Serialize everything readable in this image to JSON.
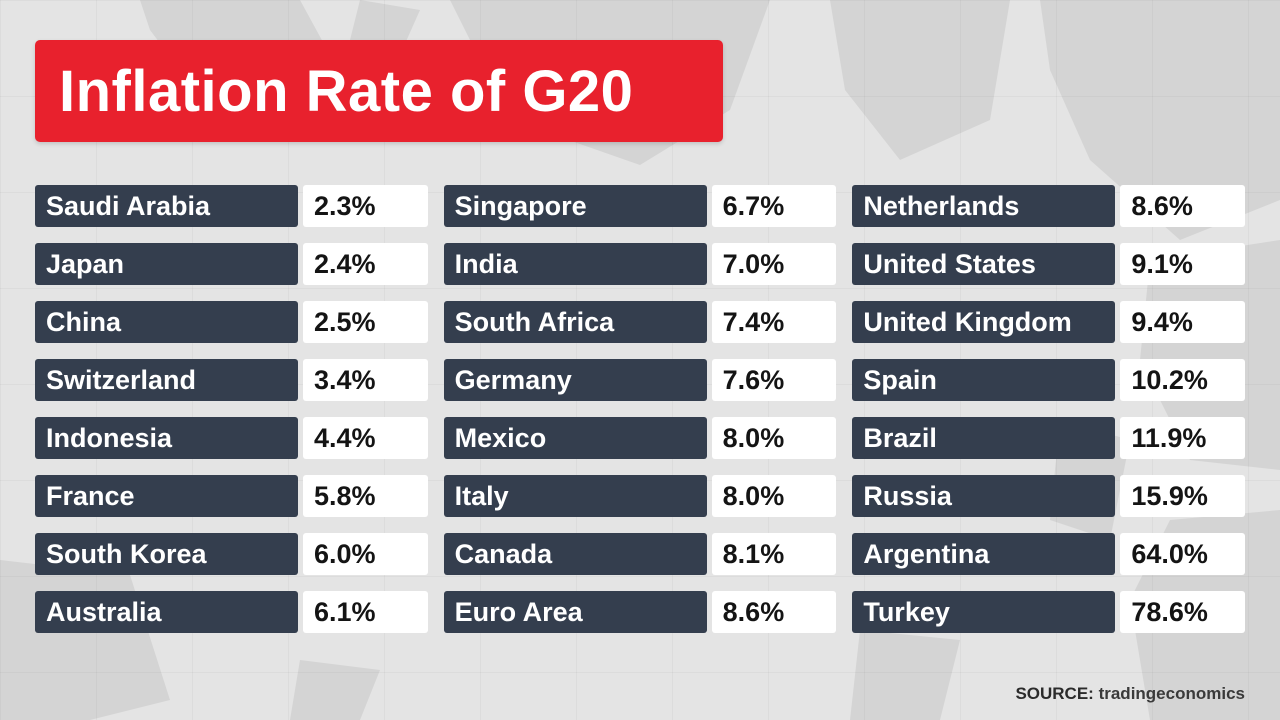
{
  "title": "Inflation Rate of G20",
  "source": {
    "label": "SOURCE:",
    "value": "tradingeconomics"
  },
  "colors": {
    "accent_red": "#e8212d",
    "navy_box": "#343e4e",
    "background": "#e4e4e4",
    "map_shape": "#d4d4d4",
    "value_text": "#141414"
  },
  "chart_data": {
    "type": "table",
    "title": "Inflation Rate of G20",
    "columns": [
      "Country",
      "Inflation Rate"
    ],
    "unit": "%",
    "groups": [
      {
        "items": [
          {
            "country": "Saudi Arabia",
            "rate": "2.3%"
          },
          {
            "country": "Japan",
            "rate": "2.4%"
          },
          {
            "country": "China",
            "rate": "2.5%"
          },
          {
            "country": "Switzerland",
            "rate": "3.4%"
          },
          {
            "country": "Indonesia",
            "rate": "4.4%"
          },
          {
            "country": "France",
            "rate": "5.8%"
          },
          {
            "country": "South Korea",
            "rate": "6.0%"
          },
          {
            "country": "Australia",
            "rate": "6.1%"
          }
        ]
      },
      {
        "items": [
          {
            "country": "Singapore",
            "rate": "6.7%"
          },
          {
            "country": "India",
            "rate": "7.0%"
          },
          {
            "country": "South Africa",
            "rate": "7.4%"
          },
          {
            "country": "Germany",
            "rate": "7.6%"
          },
          {
            "country": "Mexico",
            "rate": "8.0%"
          },
          {
            "country": "Italy",
            "rate": "8.0%"
          },
          {
            "country": "Canada",
            "rate": "8.1%"
          },
          {
            "country": "Euro Area",
            "rate": "8.6%"
          }
        ]
      },
      {
        "items": [
          {
            "country": "Netherlands",
            "rate": "8.6%"
          },
          {
            "country": "United States",
            "rate": "9.1%"
          },
          {
            "country": "United Kingdom",
            "rate": "9.4%"
          },
          {
            "country": "Spain",
            "rate": "10.2%"
          },
          {
            "country": "Brazil",
            "rate": "11.9%"
          },
          {
            "country": "Russia",
            "rate": "15.9%"
          },
          {
            "country": "Argentina",
            "rate": "64.0%"
          },
          {
            "country": "Turkey",
            "rate": "78.6%"
          }
        ]
      }
    ]
  }
}
